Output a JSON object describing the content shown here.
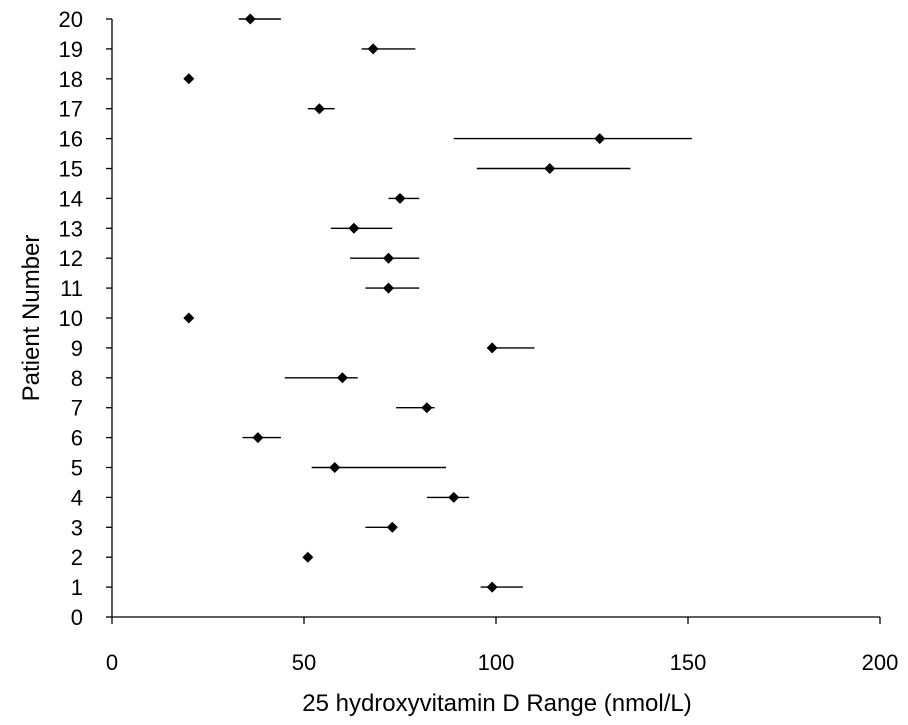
{
  "chart_data": {
    "type": "scatter",
    "title": "",
    "xlabel": "25 hydroxyvitamin D Range (nmol/L)",
    "ylabel": "Patient Number",
    "xlim": [
      0,
      200
    ],
    "ylim": [
      0,
      20
    ],
    "x_ticks": [
      0,
      50,
      100,
      150,
      200
    ],
    "y_ticks": [
      0,
      1,
      2,
      3,
      4,
      5,
      6,
      7,
      8,
      9,
      10,
      11,
      12,
      13,
      14,
      15,
      16,
      17,
      18,
      19,
      20
    ],
    "grid": false,
    "legend": "none",
    "marker": "diamond",
    "marker_color": "#000000",
    "error_bar_direction": "horizontal",
    "points": [
      {
        "patient": 1,
        "value": 99,
        "low": 96,
        "high": 107
      },
      {
        "patient": 2,
        "value": 51,
        "low": 51,
        "high": 51
      },
      {
        "patient": 3,
        "value": 73,
        "low": 66,
        "high": 73
      },
      {
        "patient": 4,
        "value": 89,
        "low": 82,
        "high": 93
      },
      {
        "patient": 5,
        "value": 58,
        "low": 52,
        "high": 87
      },
      {
        "patient": 6,
        "value": 38,
        "low": 34,
        "high": 44
      },
      {
        "patient": 7,
        "value": 82,
        "low": 74,
        "high": 84
      },
      {
        "patient": 8,
        "value": 60,
        "low": 45,
        "high": 64
      },
      {
        "patient": 9,
        "value": 99,
        "low": 99,
        "high": 110
      },
      {
        "patient": 10,
        "value": 20,
        "low": 20,
        "high": 20
      },
      {
        "patient": 11,
        "value": 72,
        "low": 66,
        "high": 80
      },
      {
        "patient": 12,
        "value": 72,
        "low": 62,
        "high": 80
      },
      {
        "patient": 13,
        "value": 63,
        "low": 57,
        "high": 73
      },
      {
        "patient": 14,
        "value": 75,
        "low": 72,
        "high": 80
      },
      {
        "patient": 15,
        "value": 114,
        "low": 95,
        "high": 135
      },
      {
        "patient": 16,
        "value": 127,
        "low": 89,
        "high": 151
      },
      {
        "patient": 17,
        "value": 54,
        "low": 51,
        "high": 58
      },
      {
        "patient": 18,
        "value": 20,
        "low": 20,
        "high": 20
      },
      {
        "patient": 19,
        "value": 68,
        "low": 65,
        "high": 79
      },
      {
        "patient": 20,
        "value": 36,
        "low": 33,
        "high": 44
      }
    ]
  }
}
